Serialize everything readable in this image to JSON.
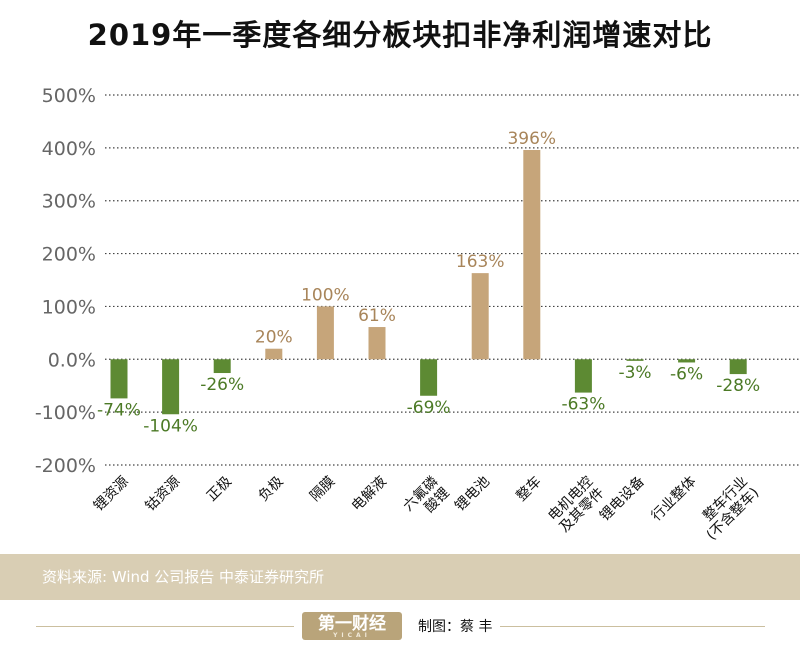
{
  "title": "2019年一季度各细分板块扣非净利润增速对比",
  "chart_data": {
    "type": "bar",
    "title": "2019年一季度各细分板块扣非净利润增速对比",
    "categories": [
      "锂资源",
      "钴资源",
      "正极",
      "负极",
      "隔膜",
      "电解液",
      "六氟磷|酸锂",
      "锂电池",
      "整车",
      "电机电控|及其零件",
      "锂电设备",
      "行业整体",
      "整车行业|(不含整车)"
    ],
    "values": [
      -74,
      -104,
      -26,
      20,
      100,
      61,
      -69,
      163,
      396,
      -63,
      -3,
      -6,
      -28
    ],
    "data_labels": [
      "-74%",
      "-104%",
      "-26%",
      "20%",
      "100%",
      "61%",
      "-69%",
      "163%",
      "396%",
      "-63%",
      "-3%",
      "-6%",
      "-28%"
    ],
    "y_ticks": [
      "500%",
      "400%",
      "300%",
      "200%",
      "100%",
      "0.0%",
      "-100%",
      "-200%"
    ],
    "ylim": [
      -200,
      500
    ],
    "grid": true,
    "colors": {
      "positive": "#c6a57a",
      "negative": "#5d8a33",
      "label_positive": "#a8855a",
      "label_negative": "#4c7a26",
      "grid": "#444444"
    }
  },
  "source": "资料来源: Wind  公司报告  中泰证券研究所",
  "footer": {
    "logo": "第一财经",
    "logo_sub": "YICAI",
    "credit": "制图：蔡 丰"
  }
}
